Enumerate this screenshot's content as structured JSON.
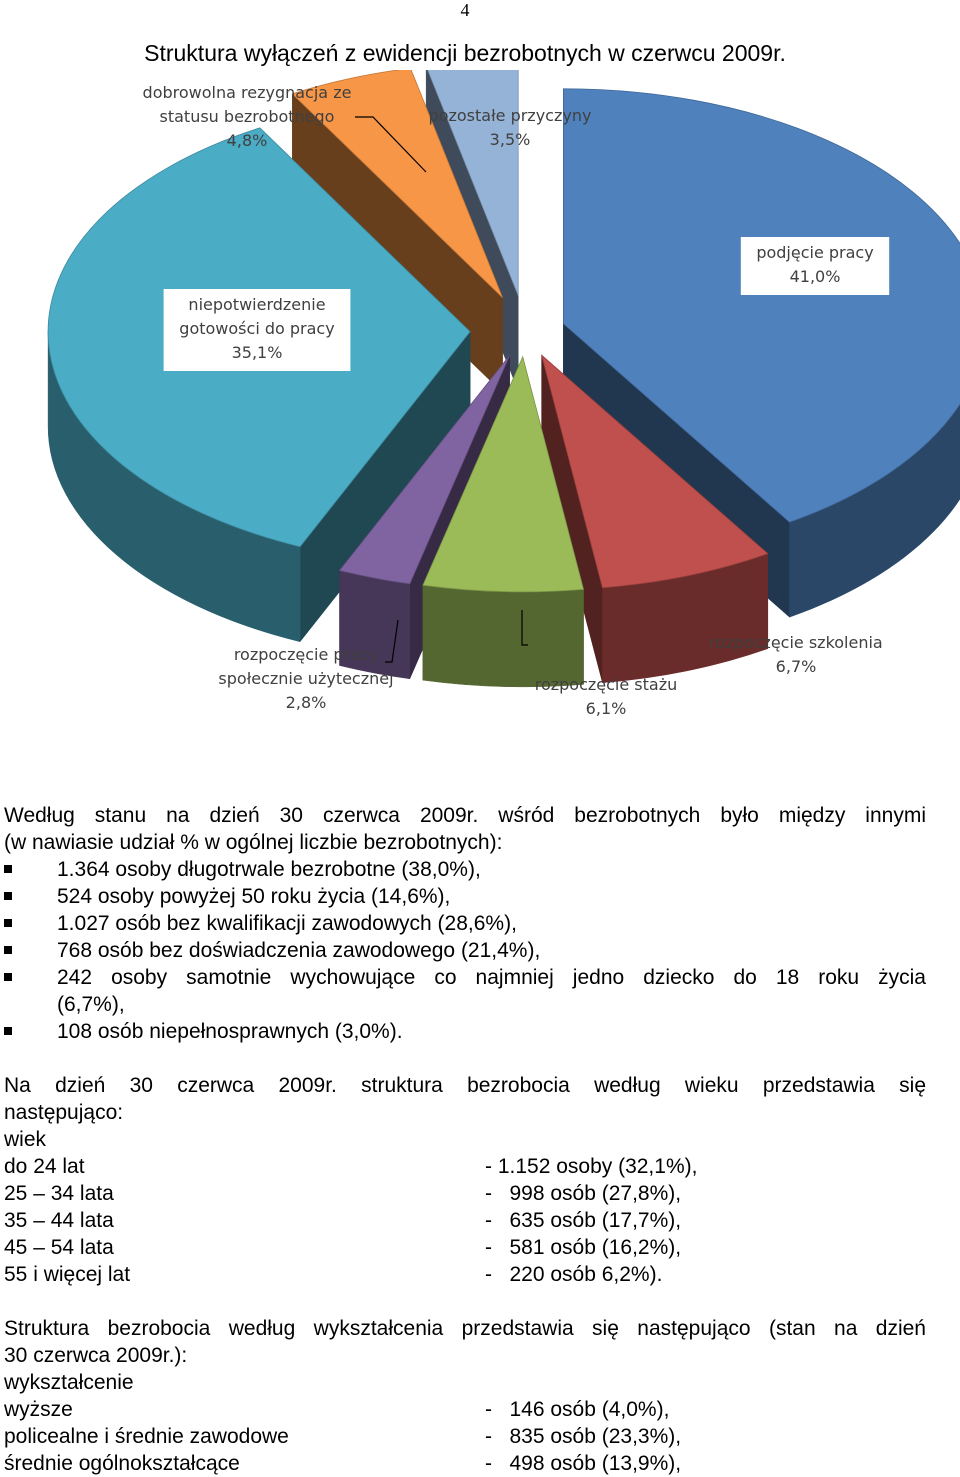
{
  "page_number": "4",
  "chart_data": {
    "type": "pie",
    "title": "Struktura wyłączeń z ewidencji bezrobotnych w czerwcu 2009r.",
    "slices": [
      {
        "label": [
          "podjęcie pracy",
          "41,0%"
        ],
        "value": 41.0,
        "color": "#4F81BD"
      },
      {
        "label": [
          "rozpoczęcie szkolenia",
          "6,7%"
        ],
        "value": 6.7,
        "color": "#C0504D"
      },
      {
        "label": [
          "rozpoczęcie stażu",
          "6,1%"
        ],
        "value": 6.1,
        "color": "#9BBB59"
      },
      {
        "label": [
          "rozpoczęcie pracy",
          "społecznie użytecznej",
          "2,8%"
        ],
        "value": 2.8,
        "color": "#8064A2"
      },
      {
        "label": [
          "niepotwierdzenie",
          "gotowości do pracy",
          "35,1%"
        ],
        "value": 35.1,
        "color": "#4BACC6"
      },
      {
        "label": [
          "dobrowolna rezygnacja ze",
          "statusu bezrobotnego",
          "4,8%"
        ],
        "value": 4.8,
        "color": "#F79646"
      },
      {
        "label": [
          "pozostałe przyczyny",
          "3,5%"
        ],
        "value": 3.5,
        "color": "#95B3D7"
      }
    ]
  },
  "section1": {
    "intro": "Według stanu na dzień 30 czerwca 2009r. wśród bezrobotnych było między innymi",
    "intro2": "(w nawiasie udział % w ogólnej liczbie bezrobotnych):",
    "bullets": [
      "1.364 osoby długotrwale bezrobotne (38,0%),",
      "524 osoby powyżej 50 roku życia (14,6%),",
      "1.027 osób bez kwalifikacji zawodowych (28,6%),",
      "768 osób bez doświadczenia zawodowego (21,4%),",
      "242 osoby samotnie wychowujące co najmniej jedno dziecko do 18 roku życia",
      "(6,7%),",
      "108 osób niepełnosprawnych (3,0%)."
    ]
  },
  "section2": {
    "intro": "Na dzień 30 czerwca 2009r. struktura bezrobocia według wieku przedstawia się",
    "intro2": "następująco:",
    "heading": "wiek",
    "rows": [
      {
        "label": "do 24 lat",
        "value": "- 1.152 osoby (32,1%),"
      },
      {
        "label": "25 – 34 lata",
        "value": "-   998 osób (27,8%),"
      },
      {
        "label": "35 – 44 lata",
        "value": "-   635 osób (17,7%),"
      },
      {
        "label": "45 – 54 lata",
        "value": "-   581 osób (16,2%),"
      },
      {
        "label": "55 i więcej lat",
        "value": "-   220 osób 6,2%)."
      }
    ]
  },
  "section3": {
    "intro": "Struktura bezrobocia według wykształcenia przedstawia się następująco (stan na dzień",
    "intro2": "30 czerwca 2009r.):",
    "heading": "wykształcenie",
    "rows": [
      {
        "label": "wyższe",
        "value": "-   146 osób (4,0%),"
      },
      {
        "label": "policealne i średnie zawodowe",
        "value": "-   835 osób (23,3%),"
      },
      {
        "label": "średnie ogólnokształcące",
        "value": "-   498 osób (13,9%),"
      }
    ]
  }
}
